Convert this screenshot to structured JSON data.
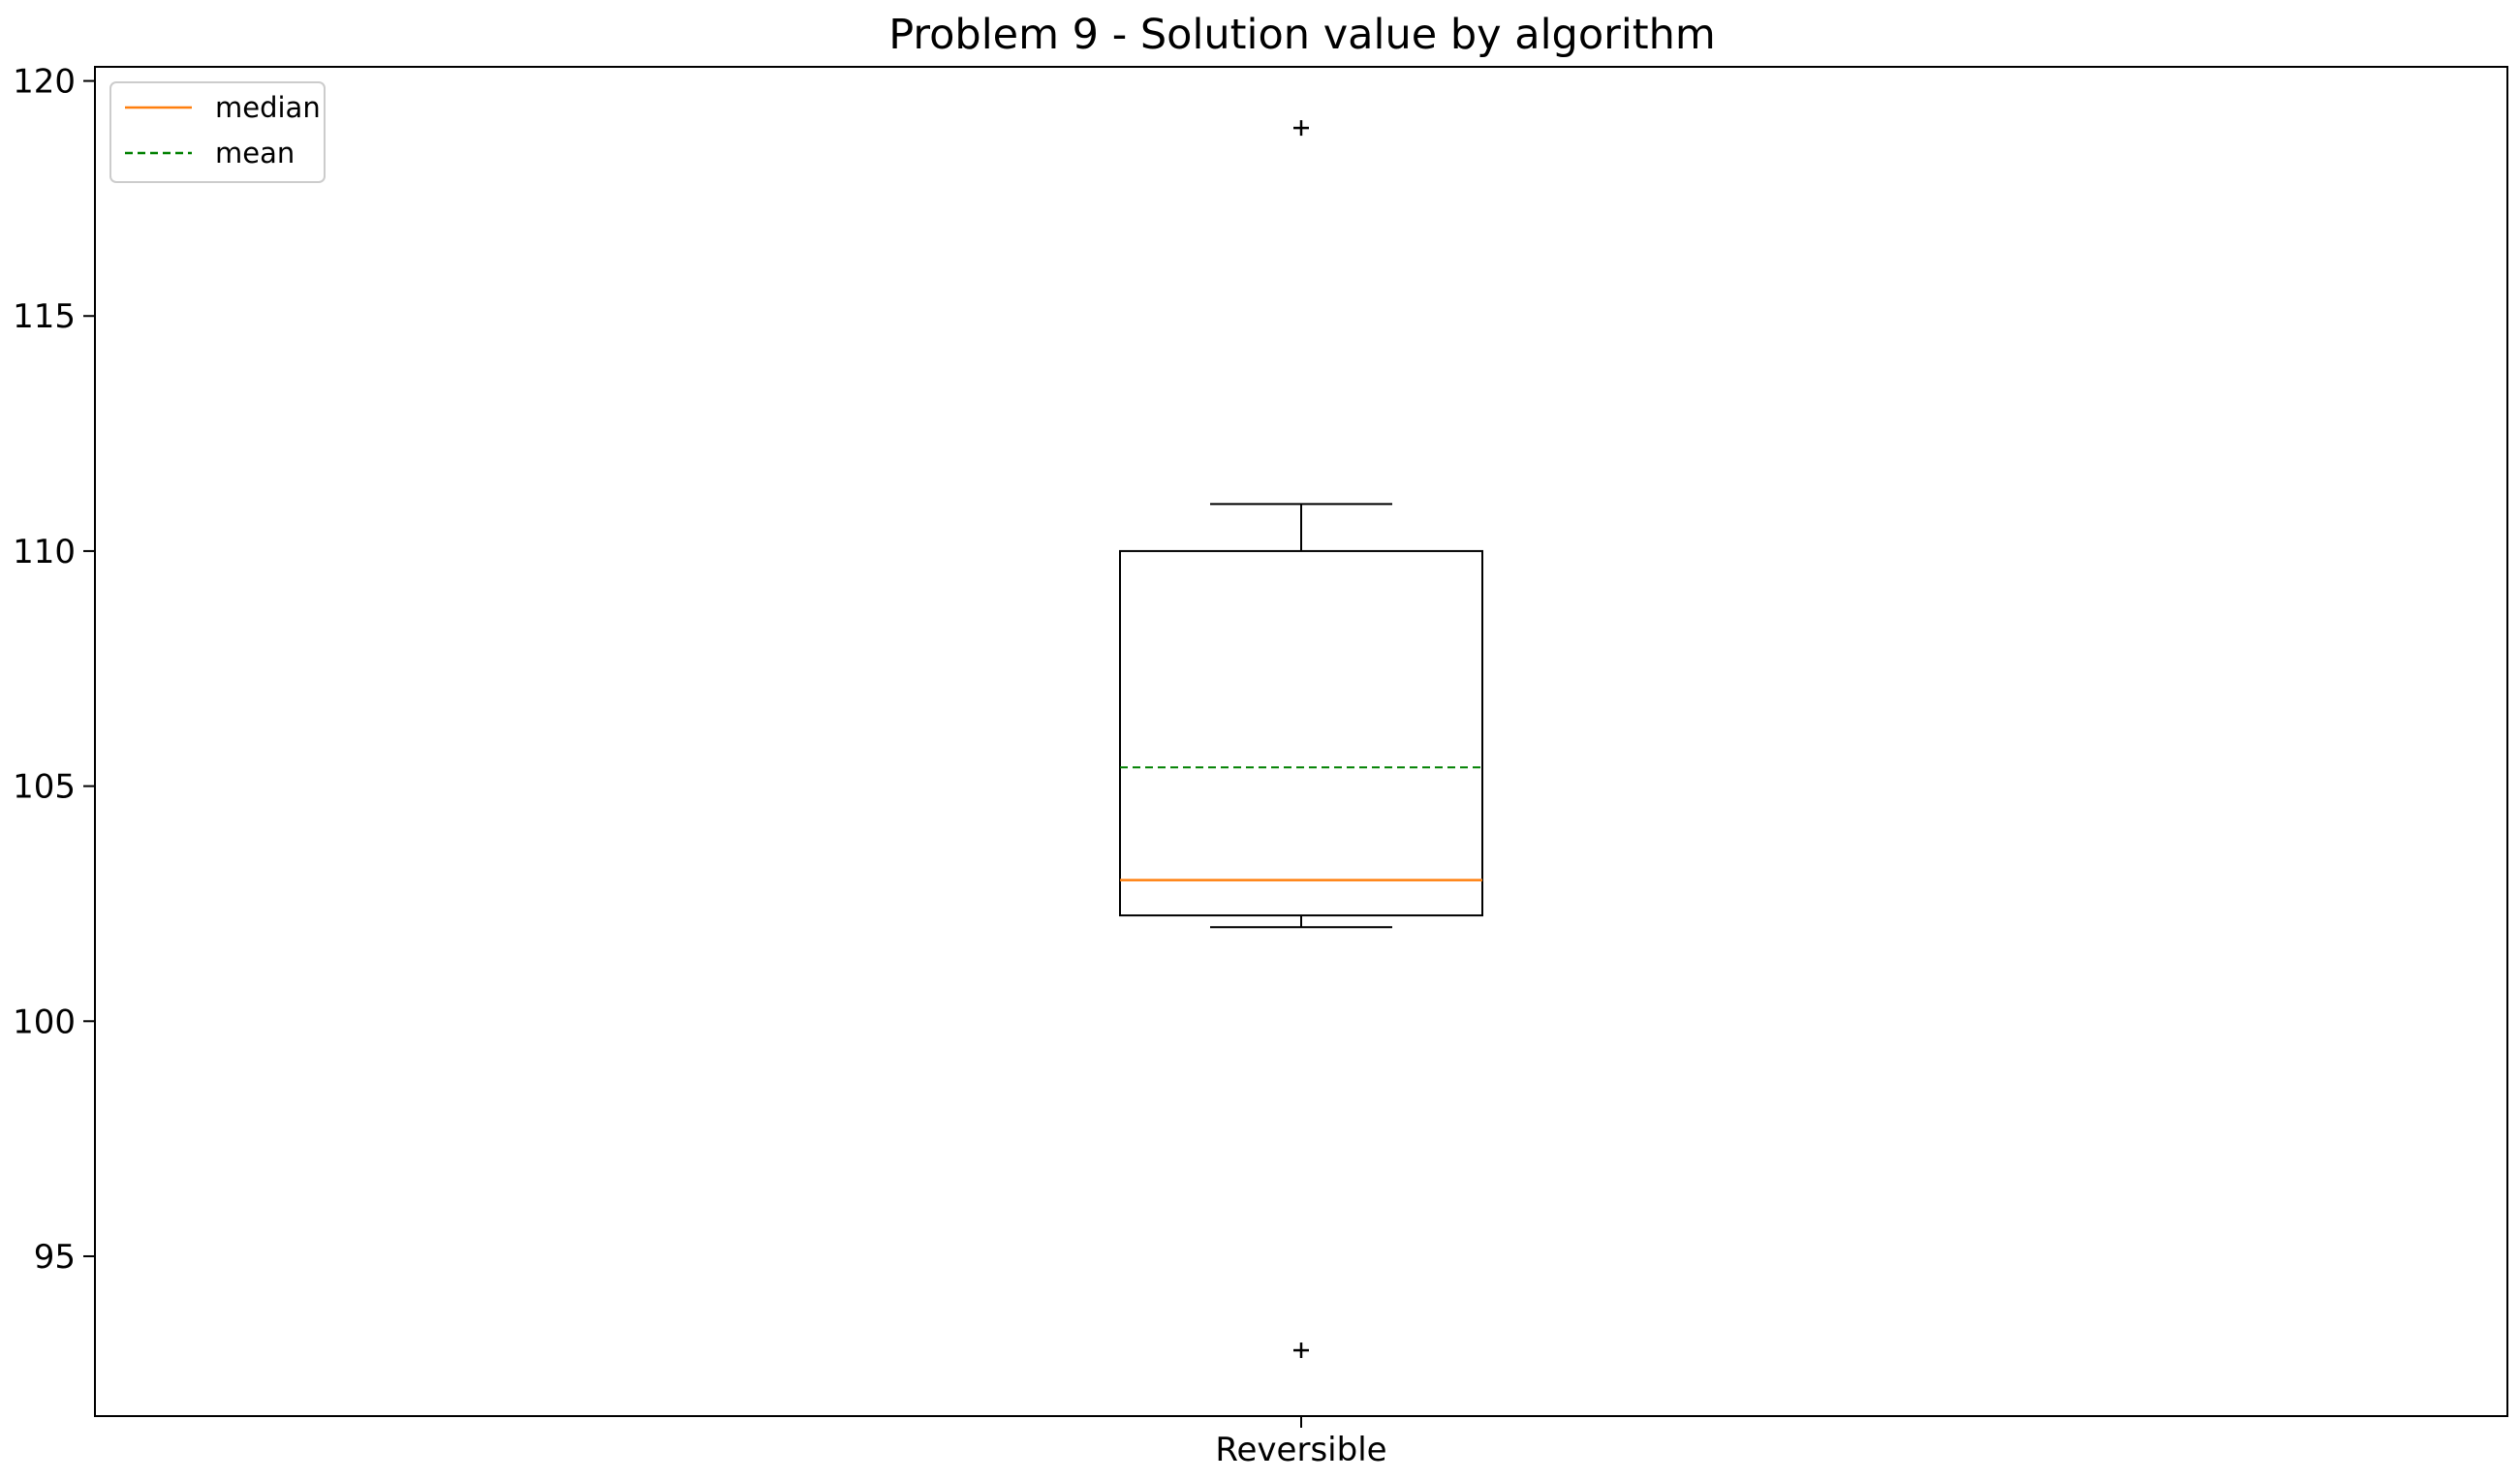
{
  "chart_data": {
    "type": "box",
    "title": "Problem 9 - Solution value by algorithm",
    "xlabel": "",
    "ylabel": "",
    "ylim": [
      91.6,
      120.3
    ],
    "yticks": [
      95,
      100,
      105,
      110,
      115,
      120
    ],
    "categories": [
      "Reversible"
    ],
    "boxes": [
      {
        "name": "Reversible",
        "whisker_low": 102.0,
        "q1": 102.25,
        "median": 103.0,
        "mean": 105.4,
        "q3": 110.0,
        "whisker_high": 111.0,
        "outliers": [
          119.0,
          93.0
        ]
      }
    ],
    "legend": {
      "position": "upper-left",
      "entries": [
        {
          "label": "median",
          "color": "#ff7f0e",
          "style": "solid"
        },
        {
          "label": "mean",
          "color": "#008000",
          "style": "dashed"
        }
      ]
    },
    "grid": false,
    "colors": {
      "median": "#ff7f0e",
      "mean": "#008000",
      "box": "#000000"
    }
  }
}
